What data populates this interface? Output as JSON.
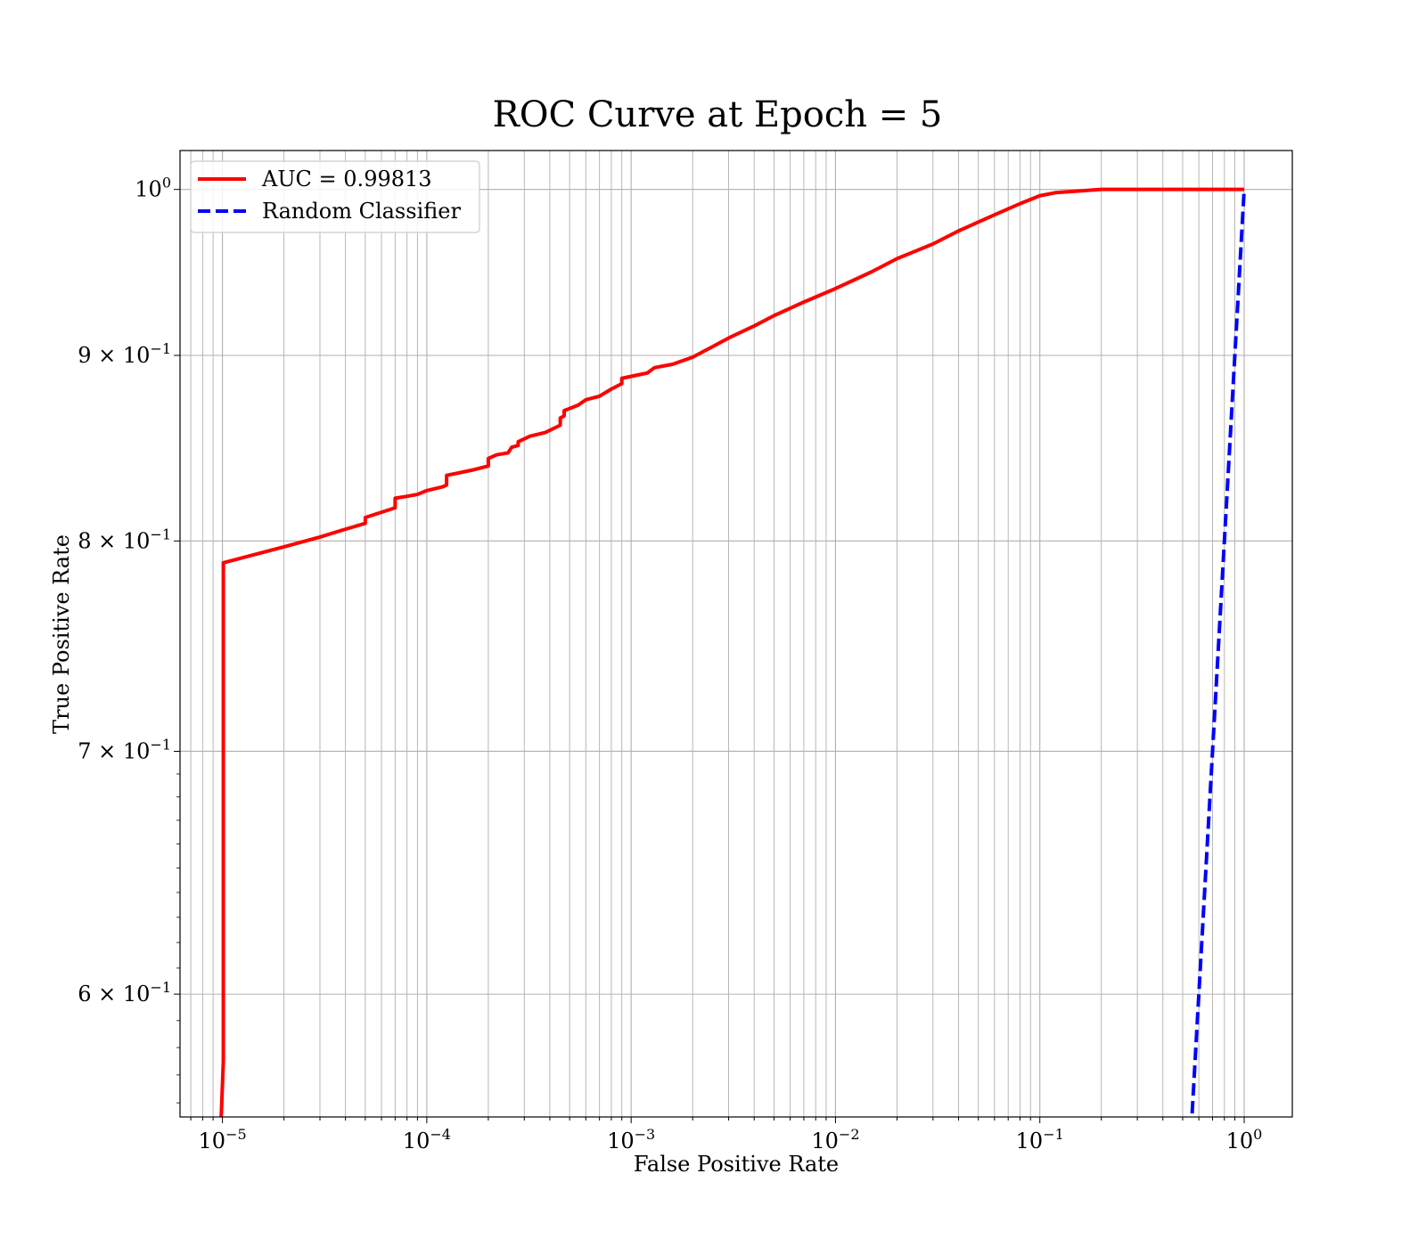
{
  "chart_data": {
    "type": "line",
    "title": "ROC Curve at Epoch = 5",
    "xlabel": "False Positive Rate",
    "ylabel": "True Positive Rate",
    "xscale": "log",
    "yscale": "log",
    "xlim": [
      6.2e-06,
      1.72
    ],
    "ylim": [
      0.555,
      1.025
    ],
    "grid": true,
    "legend_position": "top-left",
    "x_ticks": [
      {
        "value": 1e-05,
        "base": "10",
        "exp": "−5"
      },
      {
        "value": 0.0001,
        "base": "10",
        "exp": "−4"
      },
      {
        "value": 0.001,
        "base": "10",
        "exp": "−3"
      },
      {
        "value": 0.01,
        "base": "10",
        "exp": "−2"
      },
      {
        "value": 0.1,
        "base": "10",
        "exp": "−1"
      },
      {
        "value": 1,
        "base": "10",
        "exp": "0"
      }
    ],
    "y_ticks": [
      {
        "value": 1.0,
        "base": "10",
        "exp": "0",
        "mantissa": ""
      },
      {
        "value": 0.9,
        "base": "10",
        "exp": "−1",
        "mantissa": "9 × "
      },
      {
        "value": 0.8,
        "base": "10",
        "exp": "−1",
        "mantissa": "8 × "
      },
      {
        "value": 0.7,
        "base": "10",
        "exp": "−1",
        "mantissa": "7 × "
      },
      {
        "value": 0.6,
        "base": "10",
        "exp": "−1",
        "mantissa": "6 × "
      }
    ],
    "series": [
      {
        "name": "AUC = 0.99813",
        "color": "#ff0000",
        "style": "solid",
        "points": [
          [
            9.8e-06,
            0.55
          ],
          [
            1.01e-05,
            0.575
          ],
          [
            1.01e-05,
            0.789
          ],
          [
            2e-05,
            0.797
          ],
          [
            3e-05,
            0.802
          ],
          [
            4e-05,
            0.806
          ],
          [
            5e-05,
            0.809
          ],
          [
            5e-05,
            0.812
          ],
          [
            7e-05,
            0.817
          ],
          [
            7e-05,
            0.822
          ],
          [
            8e-05,
            0.823
          ],
          [
            9e-05,
            0.824
          ],
          [
            0.0001,
            0.826
          ],
          [
            0.00012,
            0.828
          ],
          [
            0.000125,
            0.829
          ],
          [
            0.000125,
            0.834
          ],
          [
            0.00017,
            0.837
          ],
          [
            0.0002,
            0.839
          ],
          [
            0.0002,
            0.843
          ],
          [
            0.00022,
            0.845
          ],
          [
            0.00025,
            0.846
          ],
          [
            0.00026,
            0.849
          ],
          [
            0.00028,
            0.85
          ],
          [
            0.00028,
            0.852
          ],
          [
            0.00032,
            0.855
          ],
          [
            0.00038,
            0.857
          ],
          [
            0.00045,
            0.861
          ],
          [
            0.00045,
            0.865
          ],
          [
            0.00047,
            0.866
          ],
          [
            0.00047,
            0.869
          ],
          [
            0.00055,
            0.872
          ],
          [
            0.0006,
            0.875
          ],
          [
            0.0007,
            0.877
          ],
          [
            0.0008,
            0.881
          ],
          [
            0.0009,
            0.884
          ],
          [
            0.0009,
            0.887
          ],
          [
            0.0012,
            0.89
          ],
          [
            0.0013,
            0.893
          ],
          [
            0.0016,
            0.895
          ],
          [
            0.002,
            0.899
          ],
          [
            0.0025,
            0.905
          ],
          [
            0.003,
            0.91
          ],
          [
            0.004,
            0.917
          ],
          [
            0.005,
            0.923
          ],
          [
            0.007,
            0.931
          ],
          [
            0.01,
            0.939
          ],
          [
            0.015,
            0.949
          ],
          [
            0.02,
            0.957
          ],
          [
            0.03,
            0.966
          ],
          [
            0.04,
            0.974
          ],
          [
            0.06,
            0.984
          ],
          [
            0.08,
            0.991
          ],
          [
            0.1,
            0.996
          ],
          [
            0.12,
            0.998
          ],
          [
            0.2,
            1.0
          ],
          [
            1.0,
            1.0
          ]
        ]
      },
      {
        "name": "Random Classifier",
        "color": "#0000ff",
        "style": "dashed",
        "points": [
          [
            0.55,
            0.55
          ],
          [
            0.6,
            0.6
          ],
          [
            0.7,
            0.7
          ],
          [
            0.8,
            0.8
          ],
          [
            0.9,
            0.9
          ],
          [
            1.0,
            1.0
          ]
        ]
      }
    ]
  }
}
